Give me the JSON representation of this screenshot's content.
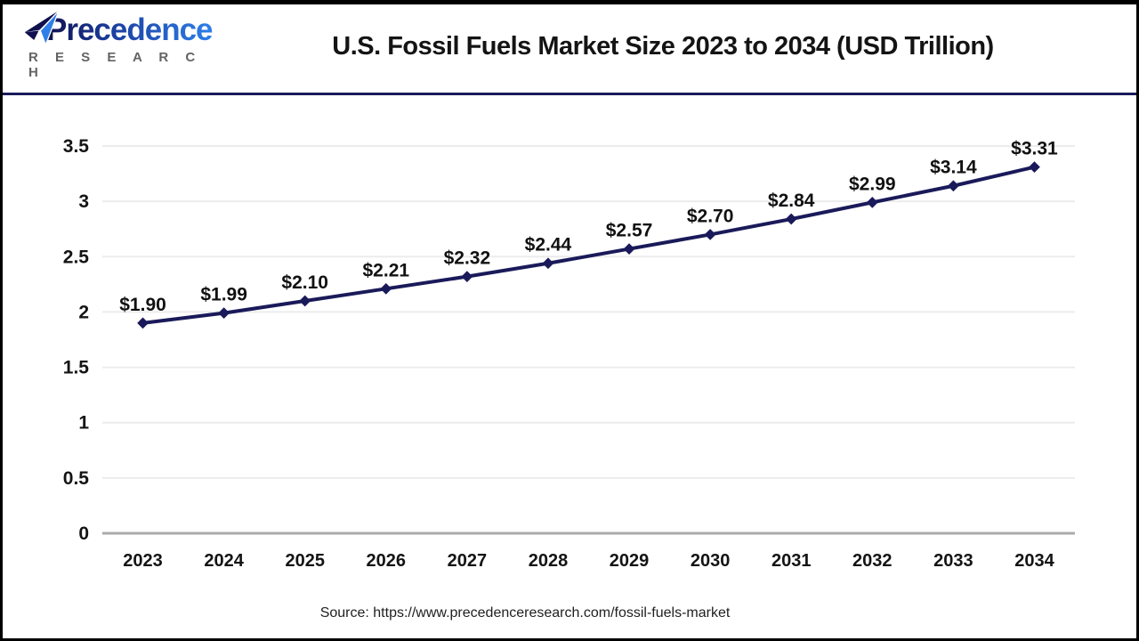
{
  "logo": {
    "brand": "Precedence",
    "subtitle": "R E S E A R C H",
    "icon": "paper-plane-icon",
    "brand_color_start": "#10104e",
    "brand_color_end": "#2e7fe8",
    "subtitle_color": "#636466"
  },
  "header": {
    "title": "U.S. Fossil Fuels Market Size 2023 to 2034 (USD Trillion)"
  },
  "chart_data": {
    "type": "line",
    "title": "U.S. Fossil Fuels Market Size 2023 to 2034 (USD Trillion)",
    "categories": [
      "2023",
      "2024",
      "2025",
      "2026",
      "2027",
      "2028",
      "2029",
      "2030",
      "2031",
      "2032",
      "2033",
      "2034"
    ],
    "values": [
      1.9,
      1.99,
      2.1,
      2.21,
      2.32,
      2.44,
      2.57,
      2.7,
      2.84,
      2.99,
      3.14,
      3.31
    ],
    "point_labels": [
      "$1.90",
      "$1.99",
      "$2.10",
      "$2.21",
      "$2.32",
      "$2.44",
      "$2.57",
      "$2.70",
      "$2.84",
      "$2.99",
      "$3.14",
      "$3.31"
    ],
    "xlabel": "",
    "ylabel": "",
    "ylim": [
      0,
      3.5
    ],
    "y_ticks": [
      0,
      0.5,
      1,
      1.5,
      2,
      2.5,
      3,
      3.5
    ],
    "grid": "horizontal",
    "legend": "none",
    "line_color": "#1a1a5a",
    "marker_color": "#1a1a5a",
    "marker_shape": "diamond",
    "label_color": "#111111",
    "grid_color": "#ececec",
    "axis_line_color": "#ababab"
  },
  "footer": {
    "source_text": "Source: https://www.precedenceresearch.com/fossil-fuels-market"
  }
}
